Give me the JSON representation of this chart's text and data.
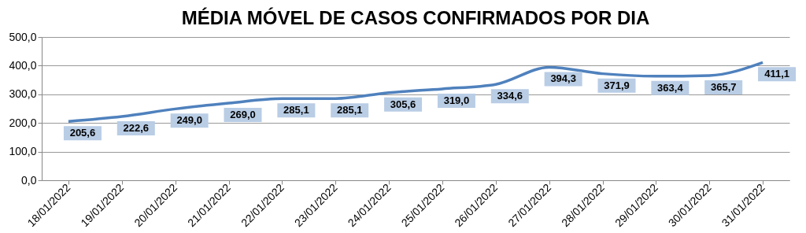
{
  "chart_data": {
    "type": "line",
    "title": "MÉDIA MÓVEL DE CASOS CONFIRMADOS POR DIA",
    "categories": [
      "18/01/2022",
      "19/01/2022",
      "20/01/2022",
      "21/01/2022",
      "22/01/2022",
      "23/01/2022",
      "24/01/2022",
      "25/01/2022",
      "26/01/2022",
      "27/01/2022",
      "28/01/2022",
      "29/01/2022",
      "30/01/2022",
      "31/01/2022"
    ],
    "series": [
      {
        "color": "#4f81bd",
        "values": [
          205.6,
          222.6,
          249.0,
          269.0,
          285.1,
          285.1,
          305.6,
          319.0,
          334.6,
          394.3,
          371.9,
          363.4,
          365.7,
          411.1
        ],
        "value_labels": [
          "205,6",
          "222,6",
          "249,0",
          "269,0",
          "285,1",
          "285,1",
          "305,6",
          "319,0",
          "334,6",
          "394,3",
          "371,9",
          "363,4",
          "365,7",
          "411,1"
        ]
      }
    ],
    "ylim": [
      0,
      500
    ],
    "yticks": [
      {
        "value": 0,
        "label": "0,0"
      },
      {
        "value": 100,
        "label": "100,0"
      },
      {
        "value": 200,
        "label": "200,0"
      },
      {
        "value": 300,
        "label": "300,0"
      },
      {
        "value": 400,
        "label": "400,0"
      },
      {
        "value": 500,
        "label": "500,0"
      }
    ],
    "grid": "y",
    "line_style": "solid"
  }
}
